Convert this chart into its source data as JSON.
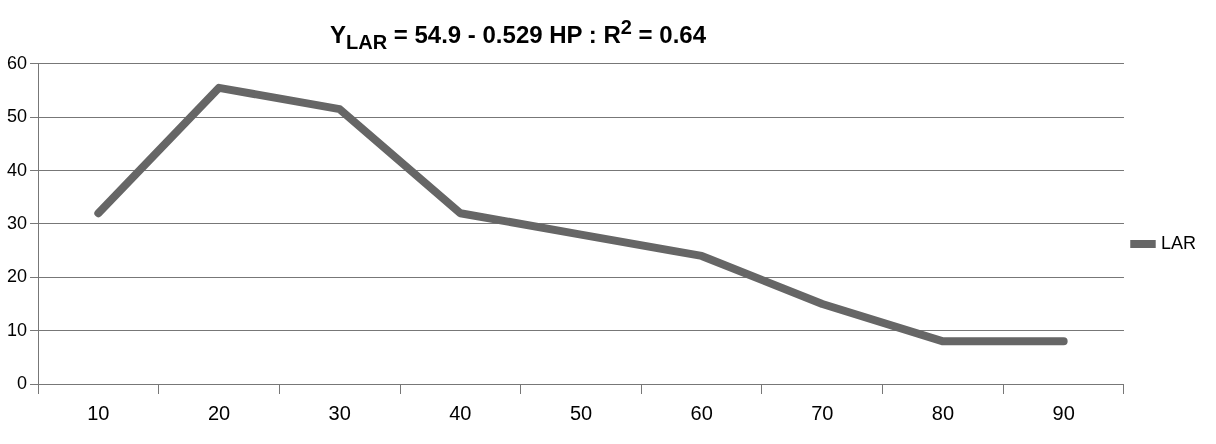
{
  "chart_data": {
    "type": "line",
    "title": "Y$_{LAR}$ = 54.9 -   0.529 HP : R$^{2}$ = 0.64",
    "categories": [
      "10",
      "20",
      "30",
      "40",
      "50",
      "60",
      "70",
      "80",
      "90"
    ],
    "series": [
      {
        "name": "LAR",
        "color": "#666666",
        "values": [
          32,
          55.5,
          51.5,
          32,
          28,
          24,
          15,
          8,
          8
        ]
      }
    ],
    "ylim": [
      0,
      60
    ],
    "yticks": [
      0,
      10,
      20,
      30,
      40,
      50,
      60
    ],
    "grid": "y",
    "legend": "right",
    "marker": "none",
    "line_style": "solid"
  }
}
